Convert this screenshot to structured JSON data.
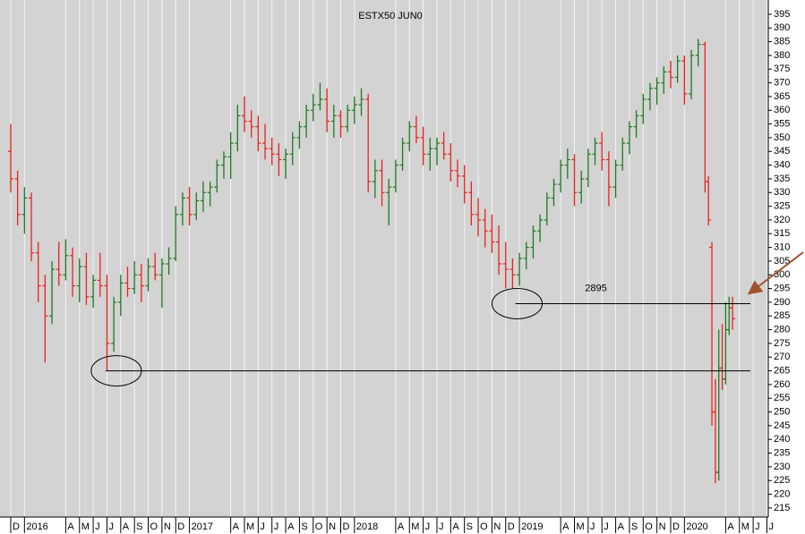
{
  "chart_data": {
    "type": "ohlc",
    "title": "ESTX50 JUN0",
    "annotation": "2895",
    "up_color": "#1f7a1f",
    "down_color": "#e8231a",
    "x": [
      0,
      0.5,
      1,
      1.5,
      2,
      2.5,
      3,
      3.5,
      4,
      4.5,
      5,
      5.5,
      6,
      6.5,
      7,
      7.5,
      8,
      8.5,
      9,
      9.5,
      10,
      10.5,
      11,
      11.5,
      12,
      12.5,
      13,
      13.5,
      14,
      14.5,
      15,
      15.5,
      16,
      16.5,
      17,
      17.5,
      18,
      18.5,
      19,
      19.5,
      20,
      20.5,
      21,
      21.5,
      22,
      22.5,
      23,
      23.5,
      24,
      24.5,
      25,
      25.5,
      26,
      26.5,
      27,
      27.5,
      28,
      28.5,
      29,
      29.5,
      30,
      30.5,
      31,
      31.5,
      32,
      32.5,
      33,
      33.5,
      34,
      34.5,
      35,
      35.5,
      36,
      36.5,
      37,
      37.5,
      38,
      38.5,
      39,
      39.5,
      40,
      40.5,
      41,
      41.5,
      42,
      42.5,
      43,
      43.5,
      44,
      44.5,
      45,
      45.5,
      46,
      46.5,
      47,
      47.5,
      48,
      48.5,
      49,
      49.5,
      50,
      50.5,
      50.75,
      51,
      51.25,
      51.5,
      51.75,
      52,
      52.25,
      52.5
    ],
    "open": [
      345,
      335,
      322,
      328,
      308,
      296,
      285,
      302,
      300,
      307,
      296,
      303,
      292,
      298,
      296,
      275,
      290,
      297,
      295,
      300,
      296,
      303,
      300,
      304,
      306,
      322,
      328,
      322,
      327,
      330,
      332,
      340,
      343,
      348,
      358,
      356,
      354,
      348,
      346,
      344,
      342,
      344,
      350,
      354,
      360,
      362,
      364,
      356,
      358,
      354,
      360,
      362,
      364,
      334,
      338,
      330,
      332,
      340,
      348,
      354,
      350,
      344,
      346,
      348,
      344,
      338,
      336,
      330,
      322,
      320,
      316,
      312,
      304,
      302,
      300,
      306,
      310,
      316,
      320,
      328,
      333,
      340,
      342,
      330,
      335,
      344,
      348,
      342,
      332,
      340,
      348,
      354,
      358,
      364,
      368,
      370,
      374,
      372,
      378,
      366,
      380,
      384,
      334,
      310,
      250,
      228,
      266,
      262,
      280,
      288
    ],
    "high": [
      355,
      338,
      332,
      330,
      312,
      300,
      305,
      312,
      313,
      310,
      306,
      308,
      300,
      308,
      300,
      292,
      300,
      303,
      305,
      304,
      306,
      308,
      306,
      310,
      325,
      330,
      332,
      330,
      334,
      334,
      342,
      345,
      352,
      362,
      365,
      360,
      358,
      355,
      350,
      348,
      346,
      352,
      356,
      362,
      366,
      370,
      368,
      362,
      360,
      362,
      365,
      368,
      366,
      342,
      342,
      335,
      342,
      350,
      356,
      358,
      354,
      350,
      350,
      352,
      348,
      342,
      340,
      334,
      328,
      324,
      322,
      318,
      312,
      306,
      308,
      312,
      318,
      322,
      330,
      335,
      342,
      346,
      344,
      338,
      346,
      350,
      352,
      345,
      342,
      350,
      356,
      360,
      366,
      370,
      372,
      376,
      378,
      380,
      380,
      382,
      386,
      385,
      336,
      312,
      262,
      280,
      282,
      290,
      292,
      292
    ],
    "low": [
      330,
      318,
      315,
      305,
      290,
      268,
      282,
      296,
      298,
      292,
      290,
      289,
      288,
      292,
      265,
      272,
      285,
      292,
      293,
      290,
      294,
      298,
      288,
      300,
      305,
      318,
      318,
      320,
      323,
      325,
      330,
      335,
      335,
      345,
      352,
      350,
      345,
      342,
      340,
      336,
      335,
      340,
      346,
      350,
      356,
      360,
      352,
      350,
      350,
      352,
      355,
      358,
      330,
      328,
      325,
      318,
      330,
      338,
      345,
      348,
      340,
      338,
      340,
      342,
      334,
      332,
      326,
      318,
      314,
      310,
      308,
      300,
      295,
      295,
      296,
      302,
      306,
      312,
      318,
      325,
      330,
      335,
      325,
      326,
      332,
      340,
      338,
      325,
      328,
      338,
      344,
      350,
      355,
      360,
      362,
      366,
      368,
      370,
      362,
      364,
      376,
      330,
      318,
      245,
      224,
      225,
      258,
      260,
      278,
      280
    ],
    "close": [
      335,
      322,
      328,
      308,
      296,
      285,
      302,
      300,
      307,
      296,
      303,
      292,
      298,
      296,
      275,
      290,
      297,
      295,
      300,
      296,
      303,
      300,
      304,
      306,
      322,
      328,
      322,
      327,
      330,
      332,
      340,
      343,
      348,
      358,
      356,
      354,
      348,
      346,
      344,
      342,
      344,
      350,
      354,
      360,
      362,
      364,
      356,
      358,
      354,
      360,
      362,
      364,
      334,
      338,
      330,
      332,
      340,
      348,
      354,
      350,
      344,
      346,
      348,
      344,
      338,
      336,
      330,
      322,
      320,
      316,
      312,
      304,
      302,
      300,
      306,
      310,
      316,
      320,
      328,
      333,
      340,
      342,
      330,
      335,
      344,
      348,
      342,
      332,
      340,
      348,
      354,
      358,
      364,
      368,
      370,
      374,
      372,
      378,
      366,
      380,
      384,
      334,
      320,
      250,
      228,
      266,
      262,
      280,
      288,
      284
    ],
    "levels": [
      {
        "y": 265,
        "x": [
          6.9,
          53.8
        ]
      },
      {
        "y": 289.5,
        "x": [
          36.7,
          53.8
        ]
      }
    ],
    "xlim": [
      -0.78,
      55.1
    ],
    "ylim": [
      211.7,
      400.2
    ],
    "xticks": [
      {
        "value": 0,
        "label": "D"
      },
      {
        "value": 1,
        "label": "2016"
      },
      {
        "value": 4,
        "label": "A"
      },
      {
        "value": 5,
        "label": "M"
      },
      {
        "value": 6,
        "label": "J"
      },
      {
        "value": 7,
        "label": "J"
      },
      {
        "value": 8,
        "label": "A"
      },
      {
        "value": 9,
        "label": "S"
      },
      {
        "value": 10,
        "label": "O"
      },
      {
        "value": 11,
        "label": "N"
      },
      {
        "value": 12,
        "label": "D"
      },
      {
        "value": 13,
        "label": "2017"
      },
      {
        "value": 16,
        "label": "A"
      },
      {
        "value": 17,
        "label": "M"
      },
      {
        "value": 18,
        "label": "J"
      },
      {
        "value": 19,
        "label": "J"
      },
      {
        "value": 20,
        "label": "A"
      },
      {
        "value": 21,
        "label": "S"
      },
      {
        "value": 22,
        "label": "O"
      },
      {
        "value": 23,
        "label": "N"
      },
      {
        "value": 24,
        "label": "D"
      },
      {
        "value": 25,
        "label": "2018"
      },
      {
        "value": 28,
        "label": "A"
      },
      {
        "value": 29,
        "label": "M"
      },
      {
        "value": 30,
        "label": "J"
      },
      {
        "value": 31,
        "label": "J"
      },
      {
        "value": 32,
        "label": "A"
      },
      {
        "value": 33,
        "label": "S"
      },
      {
        "value": 34,
        "label": "O"
      },
      {
        "value": 35,
        "label": "N"
      },
      {
        "value": 36,
        "label": "D"
      },
      {
        "value": 37,
        "label": "2019"
      },
      {
        "value": 40,
        "label": "A"
      },
      {
        "value": 41,
        "label": "M"
      },
      {
        "value": 42,
        "label": "J"
      },
      {
        "value": 43,
        "label": "J"
      },
      {
        "value": 44,
        "label": "A"
      },
      {
        "value": 45,
        "label": "S"
      },
      {
        "value": 46,
        "label": "O"
      },
      {
        "value": 47,
        "label": "N"
      },
      {
        "value": 48,
        "label": "D"
      },
      {
        "value": 49,
        "label": "2020"
      },
      {
        "value": 52,
        "label": "A"
      },
      {
        "value": 53,
        "label": "M"
      },
      {
        "value": 54,
        "label": "J"
      },
      {
        "value": 55,
        "label": "J"
      }
    ],
    "yticks": [
      395,
      390,
      385,
      380,
      375,
      370,
      365,
      360,
      355,
      350,
      345,
      340,
      335,
      330,
      325,
      320,
      315,
      310,
      305,
      300,
      295,
      290,
      285,
      280,
      275,
      270,
      265,
      260,
      255,
      250,
      245,
      240,
      235,
      230,
      225,
      220,
      215
    ]
  }
}
